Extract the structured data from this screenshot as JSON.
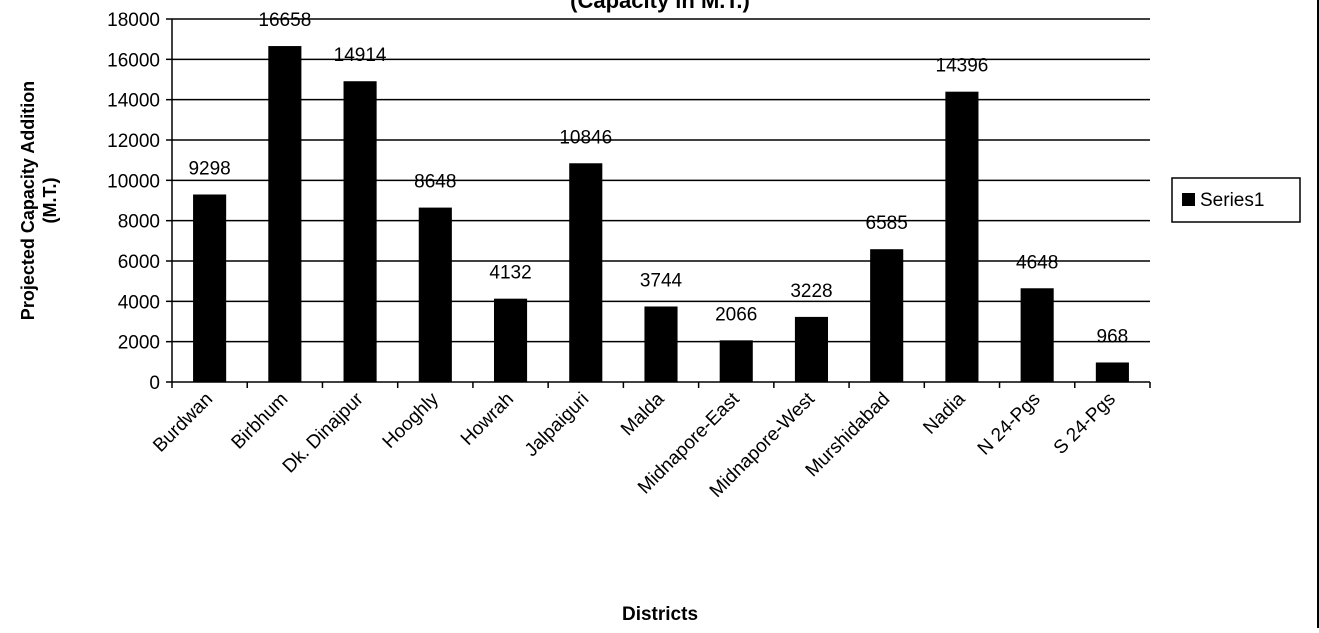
{
  "chart_data": {
    "type": "bar",
    "title": "(Capacity in M.T.)",
    "xlabel": "Districts",
    "ylabel": "Projected Capacity Addition (M.T.)",
    "ylabel_lines": [
      "Projected Capacity Addition",
      "(M.T.)"
    ],
    "ylim": [
      0,
      18000
    ],
    "yticks": [
      0,
      2000,
      4000,
      6000,
      8000,
      10000,
      12000,
      14000,
      16000,
      18000
    ],
    "grid": true,
    "legend_position": "right",
    "categories": [
      "Burdwan",
      "Birbhum",
      "Dk. Dinajpur",
      "Hooghly",
      "Howrah",
      "Jalpaiguri",
      "Malda",
      "Midnapore-East",
      "Midnapore-West",
      "Murshidabad",
      "Nadia",
      "N 24-Pgs",
      "S 24-Pgs"
    ],
    "series": [
      {
        "name": "Series1",
        "values": [
          9298,
          16658,
          14914,
          8648,
          4132,
          10846,
          3744,
          2066,
          3228,
          6585,
          14396,
          4648,
          968
        ]
      }
    ],
    "colors": {
      "bar": "#000000",
      "grid": "#000000",
      "background": "#ffffff"
    }
  }
}
